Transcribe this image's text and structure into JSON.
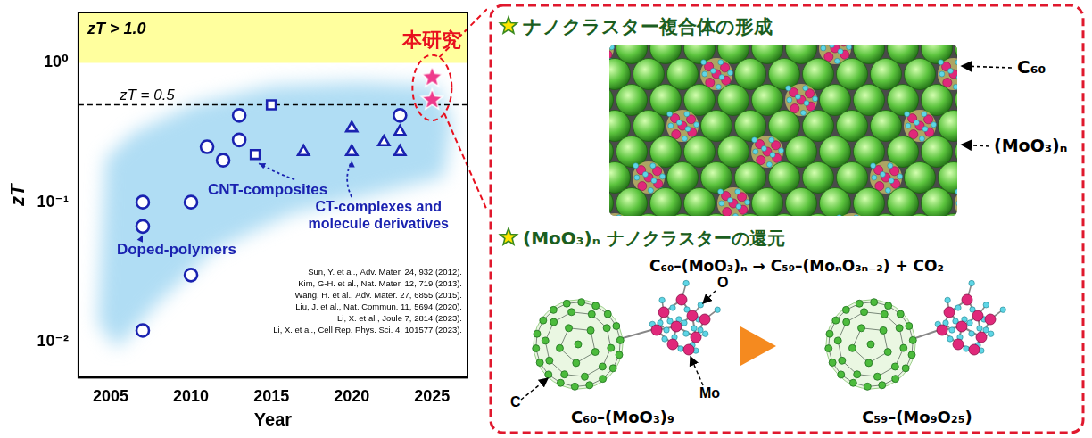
{
  "chart_data": {
    "type": "scatter",
    "x_label": "Year",
    "y_label": "zT",
    "xlim": [
      2003,
      2027.2
    ],
    "xticks": [
      2005,
      2010,
      2015,
      2020,
      2025
    ],
    "ylim": [
      0.0055,
      2.3
    ],
    "yticks": [
      {
        "value": 0.01,
        "label": "10⁻²"
      },
      {
        "value": 0.1,
        "label": "10⁻¹"
      },
      {
        "value": 1,
        "label": "10⁰"
      }
    ],
    "log": "y",
    "grid": false,
    "series": [
      {
        "name": "Doped-polymers",
        "color": "#1a22b0",
        "marker": "circle",
        "x": [
          2007,
          2007,
          2007,
          2010,
          2010,
          2011,
          2012,
          2013,
          2013,
          2023
        ],
        "values": [
          0.1,
          0.067,
          0.012,
          0.1,
          0.03,
          0.25,
          0.2,
          0.42,
          0.28,
          0.42
        ]
      },
      {
        "name": "CNT-composites",
        "color": "#1a22b0",
        "marker": "square",
        "x": [
          2014,
          2015
        ],
        "values": [
          0.22,
          0.5
        ]
      },
      {
        "name": "CT-complexes and molecule derivatives",
        "color": "#1a22b0",
        "marker": "triangle",
        "x": [
          2017,
          2020,
          2020,
          2022,
          2023,
          2023
        ],
        "values": [
          0.23,
          0.34,
          0.23,
          0.27,
          0.32,
          0.23
        ]
      },
      {
        "name": "本研究",
        "color": "#ee3a8c",
        "marker": "star",
        "x": [
          2025,
          2025
        ],
        "values": [
          0.8,
          0.55
        ]
      }
    ],
    "band": {
      "from": 1,
      "to": 2.3,
      "label": "zT > 1.0",
      "color": "#ffff9e"
    },
    "reference_line": {
      "value": 0.5,
      "label": "zT = 0.5",
      "line_style": "dashed"
    },
    "references": [
      "Sun, Y. et al., Adv. Mater. 24, 932 (2012).",
      "Kim, G-H. et al., Nat. Mater. 12, 719 (2013).",
      "Wang, H. et al., Adv. Mater. 27, 6855 (2015).",
      "Liu, J. et al., Nat. Commun. 11, 5694 (2020).",
      "Li, X. et al., Joule 7, 2814 (2023).",
      "Li, X. et al., Cell Rep. Phys. Sci. 4, 101577 (2023)."
    ]
  },
  "diagram": {
    "panel1": {
      "title": "ナノクラスター複合体の形成",
      "labels": [
        "C₆₀",
        "(MoO₃)ₙ"
      ]
    },
    "panel2": {
      "title": "(MoO₃)ₙ ナノクラスターの還元",
      "equation": "C₆₀–(MoO₃)ₙ → C₅₉–(MoₙO₃ₙ₋₂) + CO₂",
      "atom_labels": [
        "C",
        "O",
        "Mo"
      ],
      "molecules": [
        "C₆₀–(MoO₃)₉",
        "C₅₉–(Mo₉O₂₅)"
      ]
    }
  }
}
